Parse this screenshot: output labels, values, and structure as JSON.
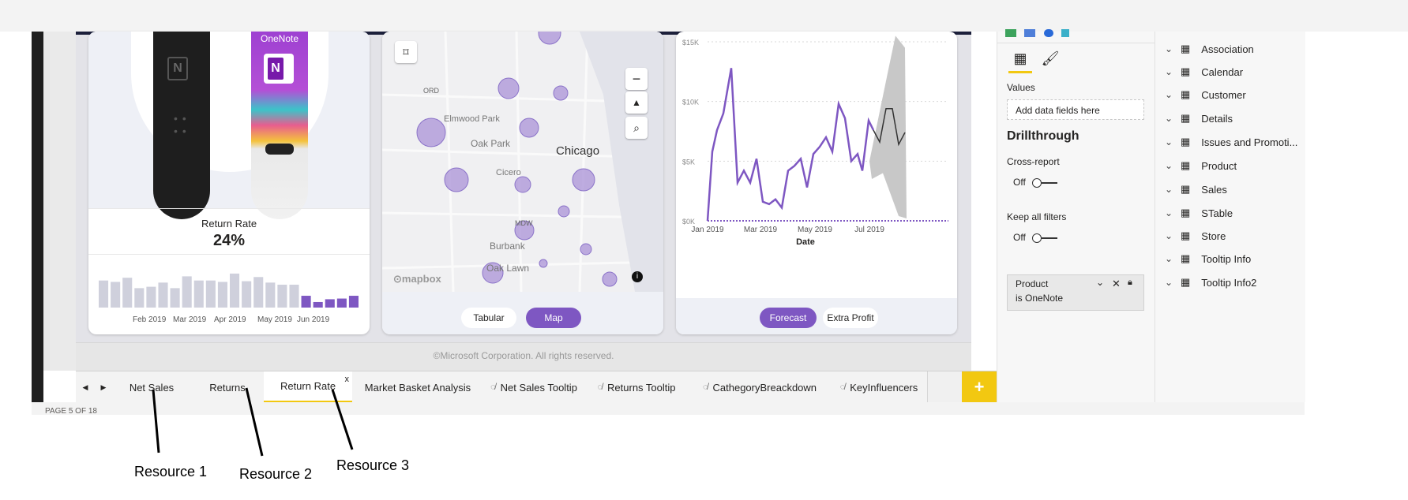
{
  "left_card": {
    "product_label": "OneNote",
    "metric_label": "Return Rate",
    "metric_value": "24%",
    "bar_values": [
      0.78,
      0.74,
      0.86,
      0.56,
      0.6,
      0.72,
      0.56,
      0.9,
      0.78,
      0.78,
      0.74,
      0.98,
      0.76,
      0.88,
      0.72,
      0.66,
      0.66,
      0.34,
      0.16,
      0.24,
      0.26,
      0.34
    ],
    "bar_highlight_from": 17,
    "axis_ticks": [
      "Feb 2019",
      "Mar 2019",
      "Apr 2019",
      "May 2019",
      "Jun 2019"
    ]
  },
  "map_card": {
    "labels": [
      "Elmwood Park",
      "Oak Park",
      "Chicago",
      "Cicero",
      "Burbank",
      "Oak Lawn"
    ],
    "airport_labels": [
      "ORD",
      "MDW"
    ],
    "attribution": "mapbox",
    "buttons": [
      "Tabular",
      "Map"
    ],
    "active_button": 1
  },
  "line_card": {
    "y_ticks": [
      "$15K",
      "$10K",
      "$5K",
      "$0K"
    ],
    "x_ticks": [
      "Jan 2019",
      "Mar 2019",
      "May 2019",
      "Jul 2019"
    ],
    "x_title": "Date",
    "buttons": [
      "Forecast",
      "Extra Profit"
    ],
    "active_button": 0
  },
  "copyright": "©Microsoft Corporation. All rights reserved.",
  "tabs": [
    {
      "label": "Net Sales",
      "hidden": false
    },
    {
      "label": "Returns",
      "hidden": false
    },
    {
      "label": "Return Rate",
      "hidden": false,
      "active": true
    },
    {
      "label": "Market Basket Analysis",
      "hidden": false
    },
    {
      "label": "Net Sales Tooltip",
      "hidden": true
    },
    {
      "label": "Returns Tooltip",
      "hidden": true
    },
    {
      "label": "CathegoryBreackdown",
      "hidden": true
    },
    {
      "label": "KeyInfluencers",
      "hidden": true
    }
  ],
  "tab_close": "x",
  "add_tab": "+",
  "status": "PAGE 5 OF 18",
  "viz_pane": {
    "values_label": "Values",
    "values_placeholder": "Add data fields here",
    "drillthrough_title": "Drillthrough",
    "cross_report_label": "Cross-report",
    "cross_report_state": "Off",
    "keep_filters_label": "Keep all filters",
    "keep_filters_state": "Off",
    "filter_field": "Product",
    "filter_value": "is OneNote"
  },
  "fields": [
    "Association",
    "Calendar",
    "Customer",
    "Details",
    "Issues and Promoti...",
    "Product",
    "Sales",
    "STable",
    "Store",
    "Tooltip Info",
    "Tooltip Info2"
  ],
  "annotations": [
    "Resource 1",
    "Resource 2",
    "Resource 3"
  ],
  "colors": {
    "accent": "#7e57c2",
    "bubble": "#b39ddb",
    "yellow": "#f2c811",
    "forecast": "#c8c8c8"
  }
}
